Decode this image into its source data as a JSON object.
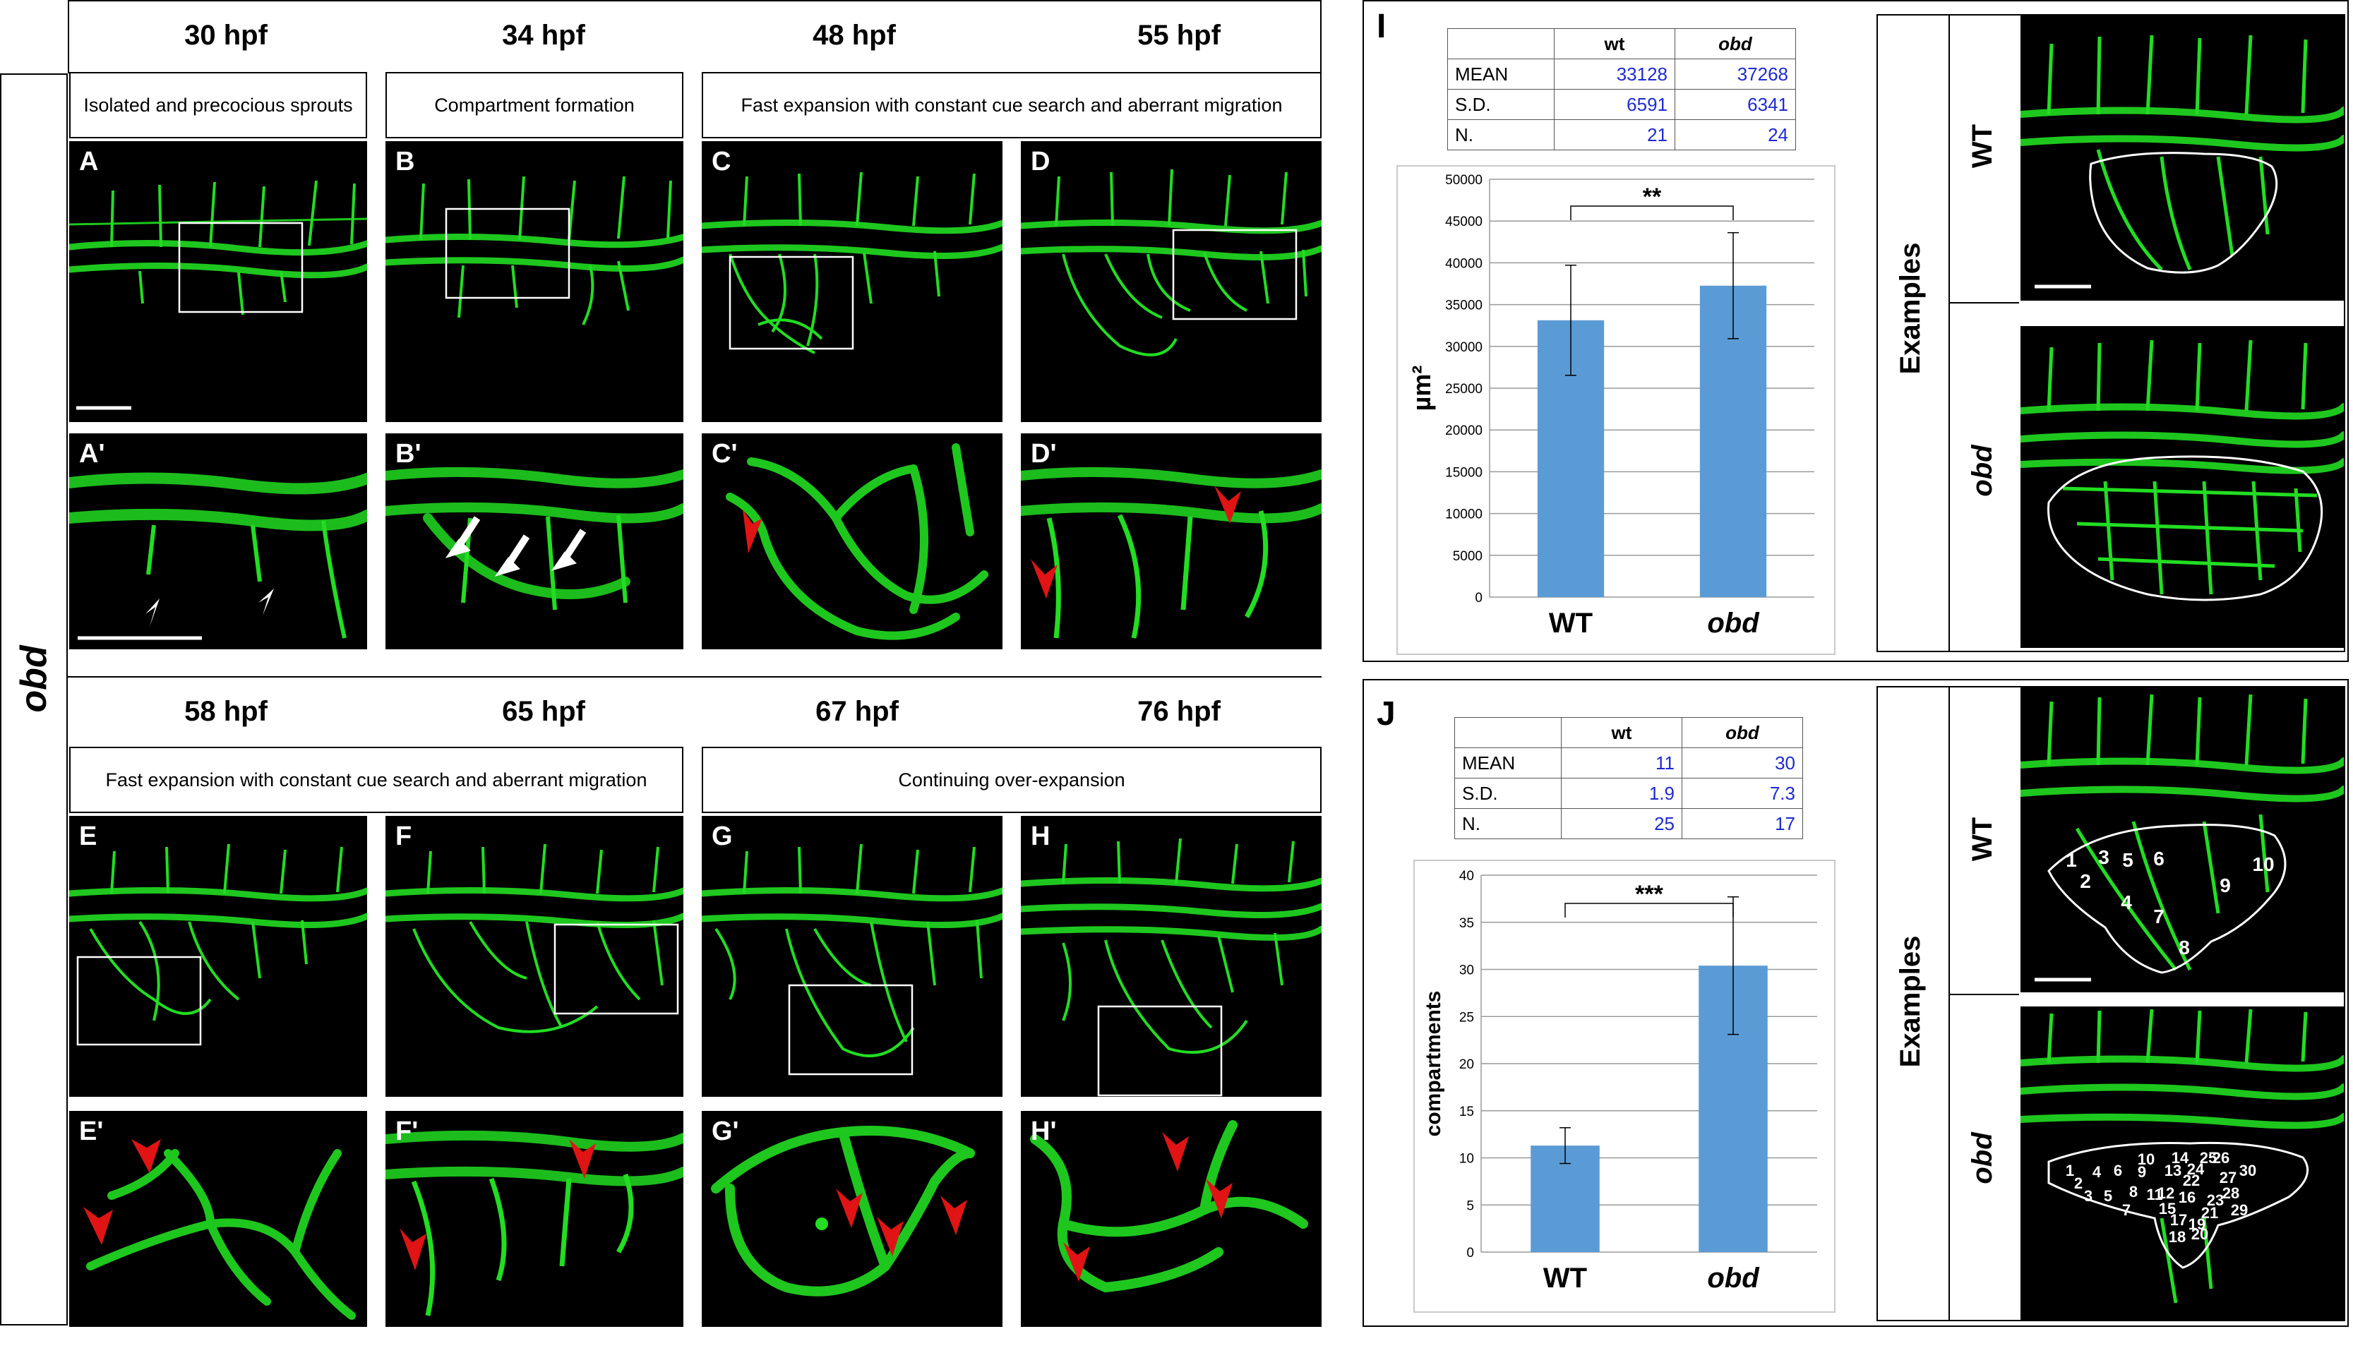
{
  "left_figure": {
    "side_label": "obd",
    "row1": {
      "times": [
        "30 hpf",
        "34 hpf",
        "48 hpf",
        "55 hpf"
      ],
      "captions": [
        "Isolated and precocious sprouts",
        "Compartment formation",
        "Fast expansion with constant cue search and aberrant migration"
      ],
      "panels": [
        "A",
        "B",
        "C",
        "D"
      ],
      "zoom_panels": [
        "A'",
        "B'",
        "C'",
        "D'"
      ]
    },
    "row2": {
      "times": [
        "58 hpf",
        "65 hpf",
        "67 hpf",
        "76 hpf"
      ],
      "captions": [
        "Fast expansion with constant cue search and aberrant migration",
        "Continuing over-expansion"
      ],
      "panels": [
        "E",
        "F",
        "G",
        "H"
      ],
      "zoom_panels": [
        "E'",
        "F'",
        "G'",
        "H'"
      ]
    },
    "colors": {
      "vessel": "#22dd22",
      "arrow_red": "#e01414",
      "arrow_white": "#ffffff"
    }
  },
  "panel_I": {
    "label": "I",
    "table": {
      "headers": [
        "",
        "wt",
        "obd"
      ],
      "rows": [
        [
          "MEAN",
          "33128",
          "37268"
        ],
        [
          "S.D.",
          "6591",
          "6341"
        ],
        [
          "N.",
          "21",
          "24"
        ]
      ]
    },
    "examples_label": "Examples",
    "example_rows": [
      "WT",
      "obd"
    ],
    "chart_data": {
      "type": "bar",
      "categories": [
        "WT",
        "obd"
      ],
      "values": [
        33128,
        37268
      ],
      "errors": [
        6591,
        6341
      ],
      "title": "",
      "xlabel": "",
      "ylabel": "µm²",
      "ylim": [
        0,
        50000
      ],
      "yticks": [
        0,
        5000,
        10000,
        15000,
        20000,
        25000,
        30000,
        35000,
        40000,
        45000,
        50000
      ],
      "significance": "**",
      "bar_color": "#5b9bd5",
      "grid": true
    }
  },
  "panel_J": {
    "label": "J",
    "table": {
      "headers": [
        "",
        "wt",
        "obd"
      ],
      "rows": [
        [
          "MEAN",
          "11",
          "30"
        ],
        [
          "S.D.",
          "1.9",
          "7.3"
        ],
        [
          "N.",
          "25",
          "17"
        ]
      ]
    },
    "examples_label": "Examples",
    "example_rows": [
      "WT",
      "obd"
    ],
    "wt_numbers": [
      "1",
      "2",
      "3",
      "4",
      "5",
      "6",
      "7",
      "8",
      "9",
      "10"
    ],
    "obd_numbers": [
      "1",
      "2",
      "3",
      "4",
      "5",
      "6",
      "7",
      "8",
      "9",
      "10",
      "11",
      "12",
      "13",
      "14",
      "15",
      "16",
      "17",
      "18",
      "19",
      "20",
      "21",
      "22",
      "23",
      "24",
      "25",
      "26",
      "27",
      "28",
      "29",
      "30"
    ],
    "chart_data": {
      "type": "bar",
      "categories": [
        "WT",
        "obd"
      ],
      "values": [
        11.3,
        30.4
      ],
      "errors": [
        1.9,
        7.3
      ],
      "title": "",
      "xlabel": "",
      "ylabel": "compartments",
      "ylim": [
        0,
        40
      ],
      "yticks": [
        0,
        5,
        10,
        15,
        20,
        25,
        30,
        35,
        40
      ],
      "significance": "***",
      "bar_color": "#5b9bd5",
      "grid": true
    }
  }
}
